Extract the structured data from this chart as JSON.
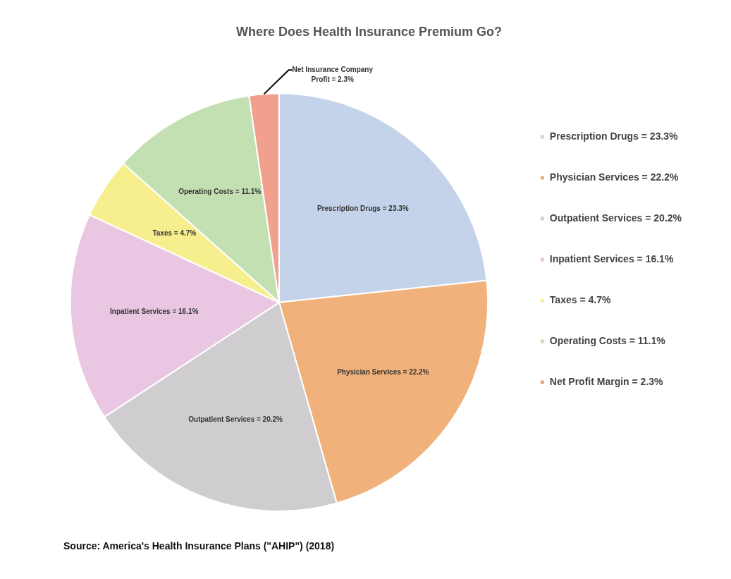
{
  "chart_data": {
    "type": "pie",
    "title": "Where Does Health Insurance Premium Go?",
    "categories": [
      "Prescription Drugs = 23.3%",
      "Physician Services = 22.2%",
      "Outpatient Services = 20.2%",
      "Inpatient Services = 16.1%",
      "Taxes = 4.7%",
      "Operating Costs = 11.1%",
      "Net Profit Margin = 2.3%"
    ],
    "values": [
      23.3,
      22.2,
      20.2,
      16.1,
      4.7,
      11.1,
      2.3
    ],
    "colors": [
      "#c5d3ea",
      "#f0b27a",
      "#d0cdd0",
      "#e9c6e2",
      "#f7ef8d",
      "#c3e0b2",
      "#f2a08e"
    ],
    "value_labels": [
      "Prescription Drugs = 23.3%",
      "Physician Services = 22.2%",
      "Outpatient Services = 20.2%",
      "Inpatient Services = 16.1%",
      "Taxes = 4.7%",
      "Operating Costs = 11.1%",
      "Net Insurance Company Profit = 2.3%"
    ],
    "legend": "right",
    "annotations": [
      "Source: America's Health Insurance Plans (\"AHIP\") (2018)"
    ]
  }
}
